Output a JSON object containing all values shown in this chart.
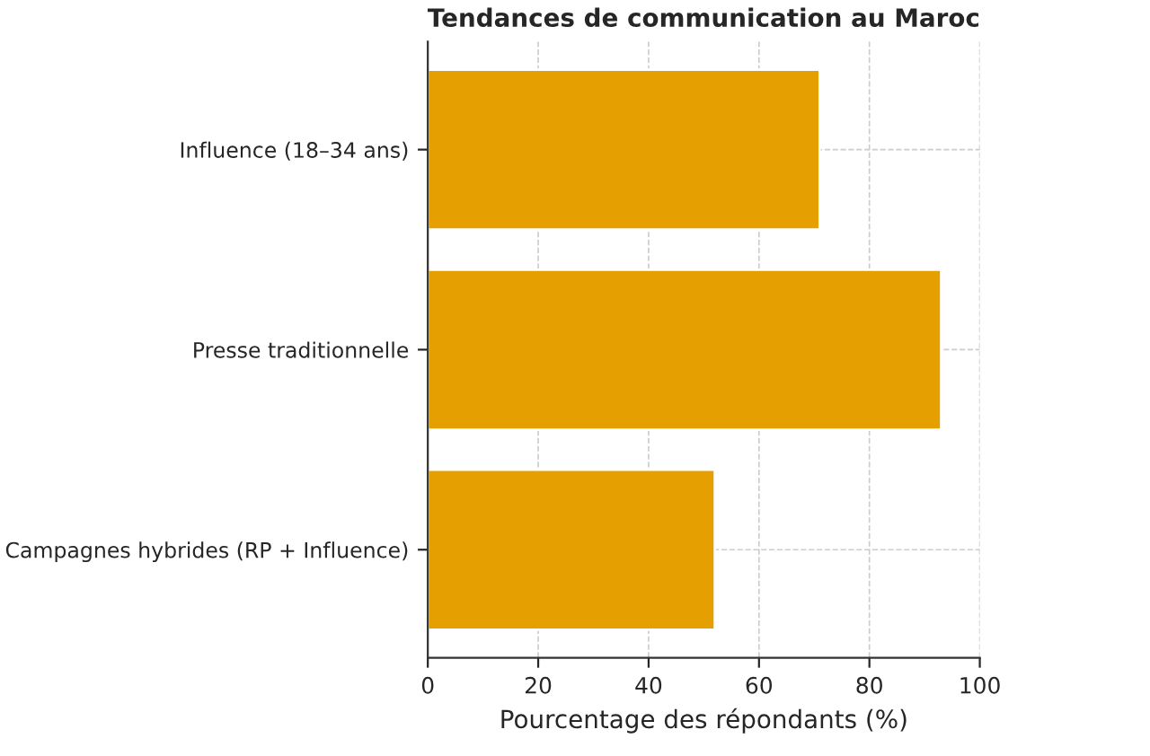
{
  "chart_data": {
    "type": "bar",
    "orientation": "horizontal",
    "title": "Tendances de communication au Maroc",
    "xlabel": "Pourcentage des répondants (%)",
    "categories": [
      "Influence (18–34 ans)",
      "Presse traditionnelle",
      "Campagnes hybrides (RP + Influence)"
    ],
    "values": [
      71,
      93,
      52
    ],
    "color": "#e69f00",
    "xlim": [
      0,
      100
    ],
    "xticks": [
      0,
      20,
      40,
      60,
      80,
      100
    ],
    "grid": true
  }
}
